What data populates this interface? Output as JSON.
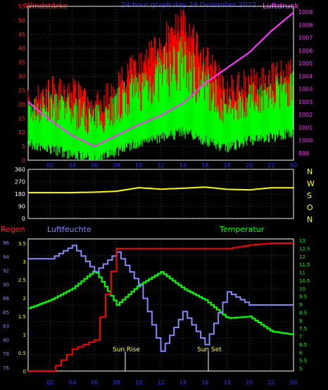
{
  "header": {
    "title": "24 hour graph day  29 Dezember 2022",
    "left_label": "Windstärke",
    "right_label": "Luftdruck"
  },
  "x_ticks": [
    "02",
    "04",
    "06",
    "08",
    "10",
    "12",
    "14",
    "16",
    "18",
    "20",
    "22",
    "00"
  ],
  "wind_panel": {
    "y_ticks": [
      "0",
      "5",
      "10",
      "15",
      "20",
      "25",
      "30",
      "35",
      "40",
      "45",
      "50",
      "55"
    ],
    "y_right_ticks": [
      "999",
      "1000",
      "1001",
      "1002",
      "1003",
      "1003",
      "1004",
      "1005",
      "1006",
      "1007",
      "1008",
      "1009"
    ]
  },
  "dir_panel": {
    "y_ticks": [
      "0",
      "90",
      "180",
      "270",
      "360"
    ],
    "compass": [
      "N",
      "W",
      "S",
      "O",
      "N"
    ]
  },
  "bottom_panel": {
    "label_regen": "Regen",
    "label_humidity": "Luftfeuchte",
    "label_temp": "Temperatur",
    "y_humidity_ticks": [
      "76",
      "78",
      "80",
      "83",
      "85",
      "88",
      "90",
      "92",
      "94",
      "96"
    ],
    "y_rain_ticks": [
      "0",
      "0.5",
      "1",
      "1.5",
      "2",
      "2.5",
      "3",
      "3.5"
    ],
    "y_temp_ticks": [
      "5",
      "5.5",
      "6",
      "6.5",
      "7",
      "7.5",
      "8",
      "8.5",
      "9",
      "9.5",
      "10",
      "10.5",
      "11",
      "11.5",
      "12",
      "12.5",
      "13"
    ],
    "sun_rise": "Sun Rise",
    "sun_set": "Sun Set"
  },
  "colors": {
    "title": "#3333ff",
    "wind_label": "#ff2222",
    "pressure": "#ff33ff",
    "gust": "#ff0000",
    "wind": "#00ff00",
    "direction": "#ffff00",
    "compass": "#ffff00",
    "rain": "#ff0000",
    "humidity": "#8888ff",
    "temperature": "#00ff00",
    "axis": "#ffffff",
    "grid": "#666666"
  },
  "chart_data": [
    {
      "type": "line",
      "title": "24 hour graph day  29 Dezember 2022",
      "x": [
        "00",
        "02",
        "04",
        "06",
        "08",
        "10",
        "12",
        "14",
        "16",
        "18",
        "20",
        "22",
        "00"
      ],
      "series": [
        {
          "name": "Windstärke",
          "kind": "wind_band",
          "values_low": [
            8,
            6,
            4,
            2,
            5,
            8,
            10,
            12,
            9,
            6,
            9,
            10,
            12
          ],
          "values_high": [
            22,
            25,
            24,
            20,
            26,
            33,
            40,
            45,
            35,
            23,
            28,
            30,
            32
          ]
        },
        {
          "name": "Windstärke gust",
          "kind": "gust_band",
          "values": [
            25,
            30,
            30,
            25,
            32,
            40,
            48,
            55,
            42,
            30,
            33,
            35,
            37
          ]
        },
        {
          "name": "Luftdruck",
          "values": [
            1002.8,
            1001.6,
            1000.6,
            999.9,
            1000.6,
            1001.3,
            1001.9,
            1002.7,
            1004.0,
            1005.0,
            1006.0,
            1007.4,
            1008.6
          ]
        }
      ],
      "ylim_left": [
        0,
        55
      ],
      "ylim_right": [
        999,
        1009
      ],
      "ylabel_left": "Windstärke",
      "ylabel_right": "Luftdruck"
    },
    {
      "type": "line",
      "x": [
        "00",
        "02",
        "04",
        "06",
        "08",
        "10",
        "12",
        "14",
        "16",
        "18",
        "20",
        "22",
        "00"
      ],
      "series": [
        {
          "values": [
            190,
            190,
            190,
            193,
            200,
            226,
            215,
            222,
            230,
            214,
            210,
            225,
            225
          ]
        }
      ],
      "ylim": [
        0,
        360
      ],
      "compass": [
        "N",
        "W",
        "S",
        "O",
        "N"
      ]
    },
    {
      "type": "line",
      "x": [
        "00",
        "02",
        "04",
        "06",
        "08",
        "10",
        "12",
        "14",
        "16",
        "18",
        "20",
        "22",
        "00"
      ],
      "series": [
        {
          "name": "Regen",
          "values": [
            0,
            0,
            0.6,
            0.85,
            3.35,
            3.35,
            3.35,
            3.35,
            3.35,
            3.35,
            3.45,
            3.5,
            3.5
          ]
        },
        {
          "name": "Luftfeuchte",
          "values": [
            93,
            93,
            95,
            91,
            94,
            89,
            79,
            85,
            80,
            88,
            86,
            86,
            86
          ]
        },
        {
          "name": "Temperatur",
          "values": [
            8.8,
            9.3,
            10.0,
            11.1,
            9.0,
            10.2,
            11.0,
            10.0,
            9.3,
            8.2,
            8.3,
            7.4,
            7.2
          ]
        }
      ],
      "ylim_rain": [
        0,
        3.5
      ],
      "ylim_humidity": [
        76,
        96
      ],
      "ylim_temperature": [
        5,
        13
      ],
      "annotations": [
        "Sun Rise",
        "Sun Set"
      ]
    }
  ]
}
